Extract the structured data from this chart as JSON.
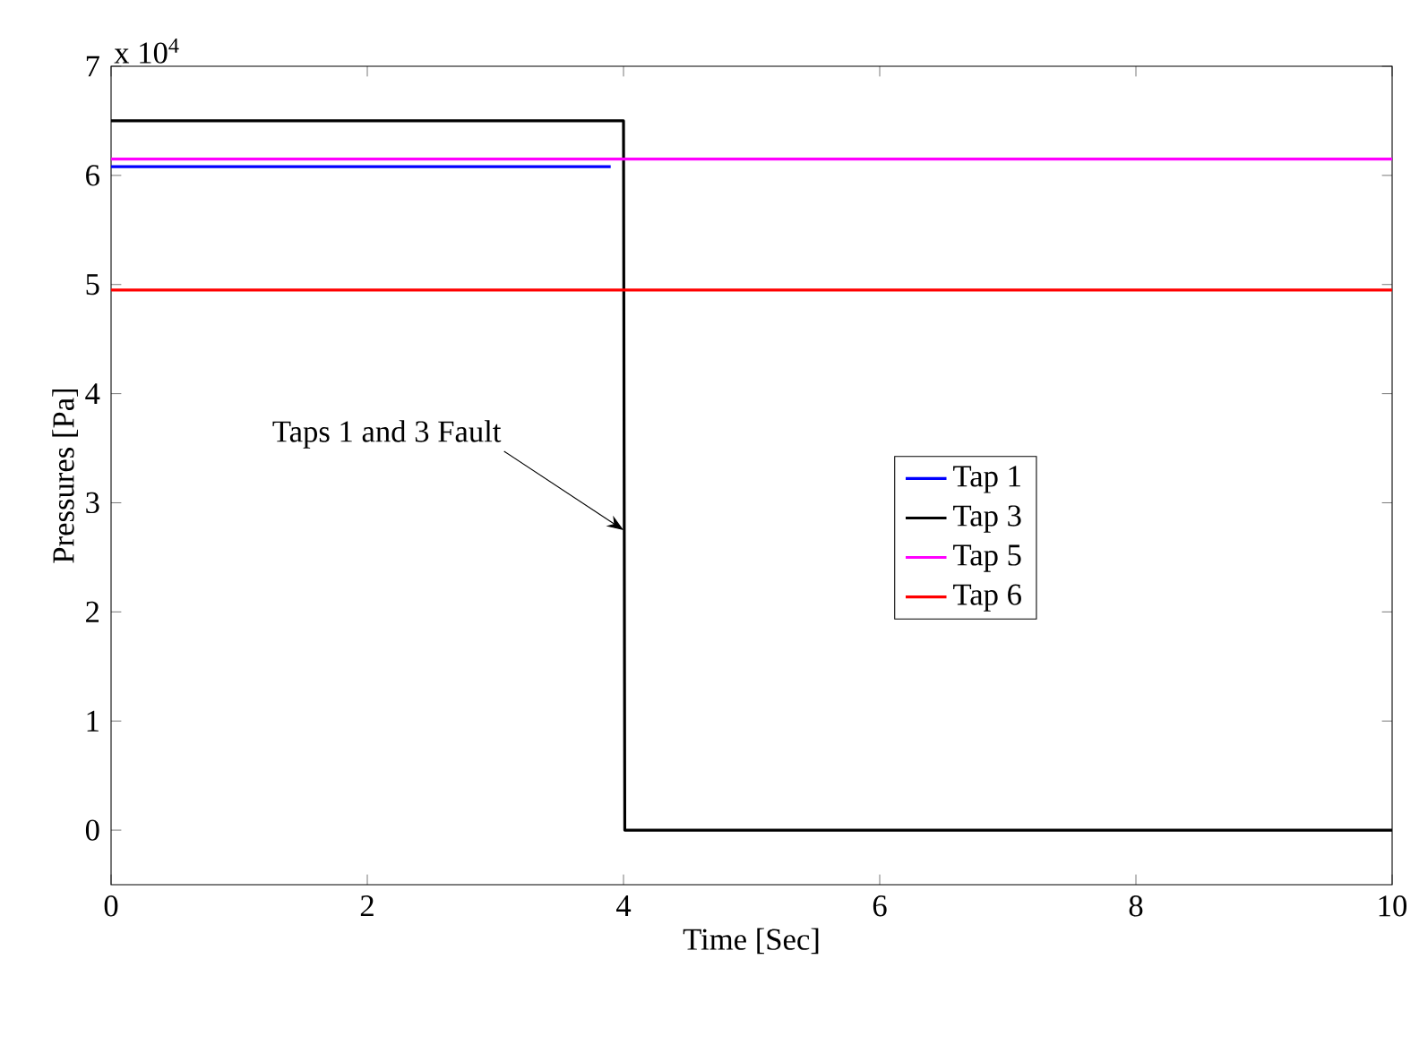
{
  "chart_data": {
    "type": "line",
    "xlabel": "Time [Sec]",
    "ylabel": "Pressures [Pa]",
    "xlim": [
      0,
      10
    ],
    "xticks": [
      0,
      2,
      4,
      6,
      8,
      10
    ],
    "ylim": [
      -0.5,
      7
    ],
    "yticks": [
      0,
      1,
      2,
      3,
      4,
      5,
      6,
      7
    ],
    "series": [
      {
        "name": "Tap 1",
        "color": "#0000ff",
        "x": [
          0,
          1,
          2,
          3,
          3.9
        ],
        "values": [
          6.08,
          6.08,
          6.08,
          6.08,
          6.08
        ]
      },
      {
        "name": "Tap 3",
        "color": "#000000",
        "x": [
          0,
          1,
          2,
          3,
          4,
          4.01,
          5,
          6,
          7,
          8,
          9,
          10
        ],
        "values": [
          6.5,
          6.5,
          6.5,
          6.5,
          6.5,
          0,
          0,
          0,
          0,
          0,
          0,
          0
        ]
      },
      {
        "name": "Tap 5",
        "color": "#ff00ff",
        "x": [
          0,
          10
        ],
        "values": [
          6.15,
          6.15
        ]
      },
      {
        "name": "Tap 6",
        "color": "#ff0000",
        "x": [
          0,
          10
        ],
        "values": [
          4.95,
          4.95
        ]
      }
    ],
    "legend": "right",
    "line_style": "solid",
    "annotations": [
      "x 10$^{4}$",
      {
        "text": "Taps 1 and 3 Fault",
        "x": 4,
        "y": 2.75
      }
    ]
  }
}
